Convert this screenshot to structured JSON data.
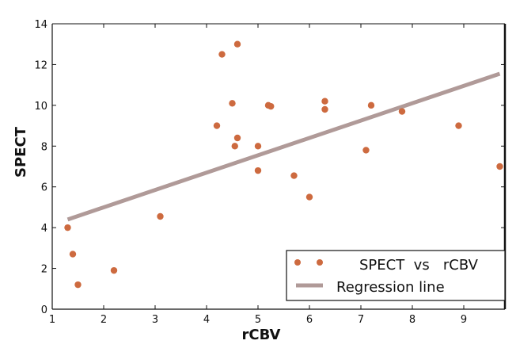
{
  "colors": {
    "point": "#cd6a3f",
    "regression": "#b09a98",
    "axis": "#111111",
    "background": "#ffffff"
  },
  "chart_data": {
    "type": "scatter",
    "title": "",
    "xlabel": "rCBV",
    "ylabel": "SPECT",
    "xlim": [
      1,
      9.8
    ],
    "ylim": [
      0,
      14
    ],
    "grid": false,
    "legend_position": "bottom-right",
    "xticks": [
      1,
      2,
      3,
      4,
      5,
      6,
      7,
      8,
      9
    ],
    "yticks": [
      0,
      2,
      4,
      6,
      8,
      10,
      12,
      14
    ],
    "series": [
      {
        "name": "SPECT vs rCBV",
        "legend_label": "SPECT  vs   rCBV",
        "x": [
          1.3,
          1.4,
          1.5,
          2.2,
          3.1,
          4.2,
          4.3,
          4.5,
          4.55,
          4.6,
          4.6,
          5.0,
          5.0,
          5.2,
          5.25,
          5.7,
          6.0,
          6.3,
          6.3,
          7.1,
          7.2,
          7.8,
          8.9,
          9.7
        ],
        "y": [
          4.0,
          2.7,
          1.2,
          1.9,
          4.55,
          9.0,
          12.5,
          10.1,
          8.0,
          8.4,
          13.0,
          8.0,
          6.8,
          10.0,
          9.95,
          6.55,
          5.5,
          9.8,
          10.2,
          7.8,
          10.0,
          9.7,
          9.0,
          7.0
        ]
      }
    ],
    "regression": {
      "name": "Regression line",
      "x": [
        1.3,
        9.7
      ],
      "y": [
        4.4,
        11.55
      ]
    }
  }
}
